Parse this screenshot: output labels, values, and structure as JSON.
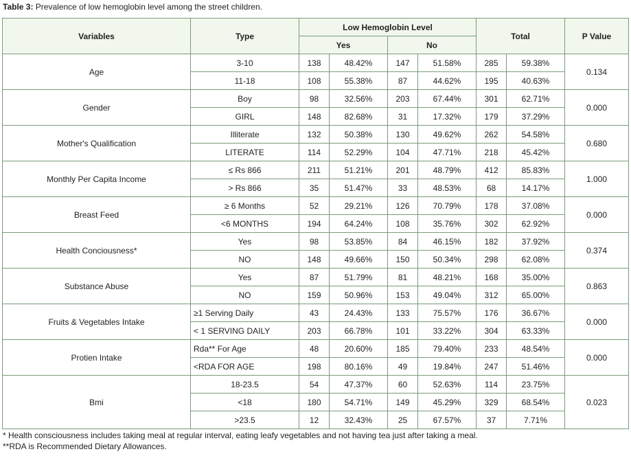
{
  "caption": {
    "label": "Table 3:",
    "text": " Prevalence of low hemoglobin level among the street children."
  },
  "headers": {
    "variables": "Variables",
    "type": "Type",
    "low_hb": "Low Hemoglobin Level",
    "yes": "Yes",
    "no": "No",
    "total": "Total",
    "pvalue": "P Value"
  },
  "groups": [
    {
      "variable": "Age",
      "p": "0.134",
      "rows": [
        {
          "type": "3-10",
          "yes_n": "138",
          "yes_p": "48.42%",
          "no_n": "147",
          "no_p": "51.58%",
          "tot_n": "285",
          "tot_p": "59.38%"
        },
        {
          "type": "11-18",
          "yes_n": "108",
          "yes_p": "55.38%",
          "no_n": "87",
          "no_p": "44.62%",
          "tot_n": "195",
          "tot_p": "40.63%"
        }
      ]
    },
    {
      "variable": "Gender",
      "p": "0.000",
      "rows": [
        {
          "type": "Boy",
          "yes_n": "98",
          "yes_p": "32.56%",
          "no_n": "203",
          "no_p": "67.44%",
          "tot_n": "301",
          "tot_p": "62.71%"
        },
        {
          "type": "GIRL",
          "yes_n": "148",
          "yes_p": "82.68%",
          "no_n": "31",
          "no_p": "17.32%",
          "tot_n": "179",
          "tot_p": "37.29%"
        }
      ]
    },
    {
      "variable": "Mother's Qualification",
      "p": "0.680",
      "rows": [
        {
          "type": "Illiterate",
          "yes_n": "132",
          "yes_p": "50.38%",
          "no_n": "130",
          "no_p": "49.62%",
          "tot_n": "262",
          "tot_p": "54.58%"
        },
        {
          "type": "LITERATE",
          "yes_n": "114",
          "yes_p": "52.29%",
          "no_n": "104",
          "no_p": "47.71%",
          "tot_n": "218",
          "tot_p": "45.42%"
        }
      ]
    },
    {
      "variable": "Monthly Per Capita Income",
      "p": "1.000",
      "rows": [
        {
          "type": "≤ Rs 866",
          "yes_n": "211",
          "yes_p": "51.21%",
          "no_n": "201",
          "no_p": "48.79%",
          "tot_n": "412",
          "tot_p": "85.83%"
        },
        {
          "type": "> Rs 866",
          "yes_n": "35",
          "yes_p": "51.47%",
          "no_n": "33",
          "no_p": "48.53%",
          "tot_n": "68",
          "tot_p": "14.17%"
        }
      ]
    },
    {
      "variable": "Breast Feed",
      "p": "0.000",
      "rows": [
        {
          "type": "≥ 6 Months",
          "yes_n": "52",
          "yes_p": "29.21%",
          "no_n": "126",
          "no_p": "70.79%",
          "tot_n": "178",
          "tot_p": "37.08%"
        },
        {
          "type": "<6 MONTHS",
          "yes_n": "194",
          "yes_p": "64.24%",
          "no_n": "108",
          "no_p": "35.76%",
          "tot_n": "302",
          "tot_p": "62.92%"
        }
      ]
    },
    {
      "variable": "Health Conciousness*",
      "p": "0.374",
      "rows": [
        {
          "type": "Yes",
          "yes_n": "98",
          "yes_p": "53.85%",
          "no_n": "84",
          "no_p": "46.15%",
          "tot_n": "182",
          "tot_p": "37.92%"
        },
        {
          "type": "NO",
          "yes_n": "148",
          "yes_p": "49.66%",
          "no_n": "150",
          "no_p": "50.34%",
          "tot_n": "298",
          "tot_p": "62.08%"
        }
      ]
    },
    {
      "variable": "Substance Abuse",
      "p": "0.863",
      "rows": [
        {
          "type": "Yes",
          "yes_n": "87",
          "yes_p": "51.79%",
          "no_n": "81",
          "no_p": "48.21%",
          "tot_n": "168",
          "tot_p": "35.00%"
        },
        {
          "type": "NO",
          "yes_n": "159",
          "yes_p": "50.96%",
          "no_n": "153",
          "no_p": "49.04%",
          "tot_n": "312",
          "tot_p": "65.00%"
        }
      ]
    },
    {
      "variable": "Fruits & Vegetables Intake",
      "p": "0.000",
      "rows": [
        {
          "type": "≥1 Serving Daily",
          "yes_n": "43",
          "yes_p": "24.43%",
          "no_n": "133",
          "no_p": "75.57%",
          "tot_n": "176",
          "tot_p": "36.67%",
          "left": true
        },
        {
          "type": "< 1 SERVING DAILY",
          "yes_n": "203",
          "yes_p": "66.78%",
          "no_n": "101",
          "no_p": "33.22%",
          "tot_n": "304",
          "tot_p": "63.33%",
          "left": true
        }
      ]
    },
    {
      "variable": "Protien Intake",
      "p": "0.000",
      "rows": [
        {
          "type": "Rda** For Age",
          "yes_n": "48",
          "yes_p": "20.60%",
          "no_n": "185",
          "no_p": "79.40%",
          "tot_n": "233",
          "tot_p": "48.54%",
          "left": true
        },
        {
          "type": "<RDA FOR AGE",
          "yes_n": "198",
          "yes_p": "80.16%",
          "no_n": "49",
          "no_p": "19.84%",
          "tot_n": "247",
          "tot_p": "51.46%",
          "left": true
        }
      ]
    },
    {
      "variable": "Bmi",
      "p": "0.023",
      "rows": [
        {
          "type": "18-23.5",
          "yes_n": "54",
          "yes_p": "47.37%",
          "no_n": "60",
          "no_p": "52.63%",
          "tot_n": "114",
          "tot_p": "23.75%"
        },
        {
          "type": "<18",
          "yes_n": "180",
          "yes_p": "54.71%",
          "no_n": "149",
          "no_p": "45.29%",
          "tot_n": "329",
          "tot_p": "68.54%"
        },
        {
          "type": ">23.5",
          "yes_n": "12",
          "yes_p": "32.43%",
          "no_n": "25",
          "no_p": "67.57%",
          "tot_n": "37",
          "tot_p": "7.71%"
        }
      ]
    }
  ],
  "footnotes": [
    "* Health consciousness includes taking meal at regular interval, eating leafy vegetables and not having tea just after taking a meal.",
    "**RDA is Recommended Dietary Allowances."
  ]
}
